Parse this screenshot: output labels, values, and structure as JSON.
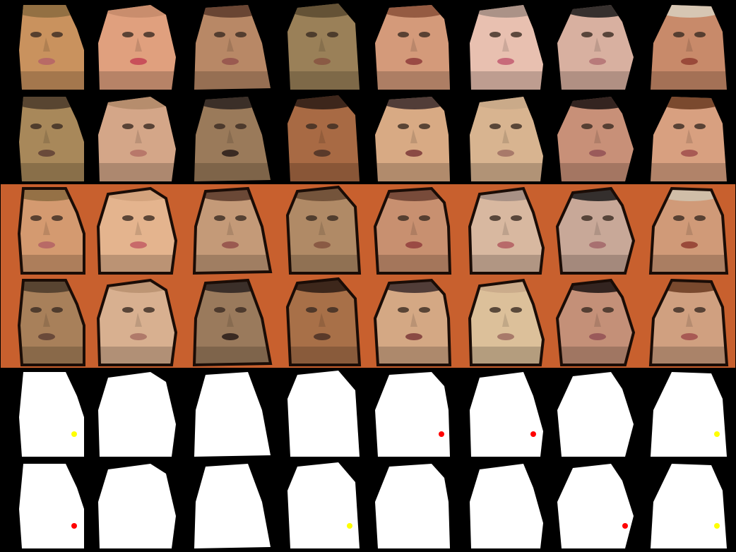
{
  "grid": {
    "rows": [
      {
        "kind": "warped-face",
        "background": "#000000",
        "tiles": [
          {
            "skin": "#c9925e",
            "hair": "#8a6a3e",
            "mouth": "#b86a66"
          },
          {
            "skin": "#e0a07e",
            "hair": "#c48a6a",
            "mouth": "#c8505a"
          },
          {
            "skin": "#b88866",
            "hair": "#5a3a2a",
            "mouth": "#9a5a50"
          },
          {
            "skin": "#9a8058",
            "hair": "#5a4a30",
            "mouth": "#8a5a44"
          },
          {
            "skin": "#d49a7a",
            "hair": "#8a5038",
            "mouth": "#9a4a44"
          },
          {
            "skin": "#e8c0b0",
            "hair": "#a08a80",
            "mouth": "#c86a7a"
          },
          {
            "skin": "#d8b0a0",
            "hair": "#1a1a1a",
            "mouth": "#b87a7a"
          },
          {
            "skin": "#c88a6a",
            "hair": "#d8d0c0",
            "mouth": "#9a4a3a"
          }
        ]
      },
      {
        "kind": "warped-face",
        "background": "#000000",
        "tiles": [
          {
            "skin": "#a8885a",
            "hair": "#4a3a2a",
            "mouth": "#6a4a3a"
          },
          {
            "skin": "#d4a688",
            "hair": "#b08868",
            "mouth": "#b8786a"
          },
          {
            "skin": "#9a7a5a",
            "hair": "#2a2220",
            "mouth": "#3a2a22"
          },
          {
            "skin": "#a86a44",
            "hair": "#2a1a14",
            "mouth": "#5a3a2a"
          },
          {
            "skin": "#d8aa84",
            "hair": "#3a2a2a",
            "mouth": "#8a4a44"
          },
          {
            "skin": "#d8b490",
            "hair": "#c8a888",
            "mouth": "#a87a6a"
          },
          {
            "skin": "#c89078",
            "hair": "#1a1210",
            "mouth": "#9a5a5a"
          },
          {
            "skin": "#d8a080",
            "hair": "#6a3a20",
            "mouth": "#a85a54"
          }
        ]
      },
      {
        "kind": "reconstructed-face",
        "background": "#c8602e",
        "tiles": [
          {
            "skin": "#d49a70",
            "hair": "#8a6a3e",
            "mouth": "#b86a66"
          },
          {
            "skin": "#e4b48e",
            "hair": "#d0a07a",
            "mouth": "#c86a6a"
          },
          {
            "skin": "#c49a78",
            "hair": "#5a3a2a",
            "mouth": "#9a5a50"
          },
          {
            "skin": "#b08a66",
            "hair": "#6a4a34",
            "mouth": "#8a5a44"
          },
          {
            "skin": "#c89070",
            "hair": "#6a4030",
            "mouth": "#9a4a44"
          },
          {
            "skin": "#d8b8a0",
            "hair": "#a08a80",
            "mouth": "#b86a6a"
          },
          {
            "skin": "#c8a898",
            "hair": "#1a1a1a",
            "mouth": "#a87070"
          },
          {
            "skin": "#d09a78",
            "hair": "#d0c4b0",
            "mouth": "#9a4a3a"
          }
        ]
      },
      {
        "kind": "reconstructed-face",
        "background": "#c8602e",
        "tiles": [
          {
            "skin": "#a8805a",
            "hair": "#4a3a2a",
            "mouth": "#6a4a3a"
          },
          {
            "skin": "#d8b090",
            "hair": "#b89070",
            "mouth": "#b07a6a"
          },
          {
            "skin": "#9a7a5c",
            "hair": "#2a2220",
            "mouth": "#3a2a22"
          },
          {
            "skin": "#a87048",
            "hair": "#2a1a14",
            "mouth": "#5a3a2a"
          },
          {
            "skin": "#d4a884",
            "hair": "#3a2a2a",
            "mouth": "#8a4a44"
          },
          {
            "skin": "#dcc09a",
            "hair": "#c8a888",
            "mouth": "#a87a6a"
          },
          {
            "skin": "#c49078",
            "hair": "#1a1210",
            "mouth": "#9a5a5a"
          },
          {
            "skin": "#d0a080",
            "hair": "#6a3a20",
            "mouth": "#a85a54"
          }
        ]
      },
      {
        "kind": "mask",
        "background": "#000000",
        "tiles": [
          {
            "mask": "#ffffff",
            "spot": "#ffff00"
          },
          {
            "mask": "#ffffff",
            "spot": ""
          },
          {
            "mask": "#ffffff",
            "spot": ""
          },
          {
            "mask": "#ffffff",
            "spot": ""
          },
          {
            "mask": "#ffffff",
            "spot": "#ff0000"
          },
          {
            "mask": "#ffffff",
            "spot": "#ff0000"
          },
          {
            "mask": "#ffffff",
            "spot": ""
          },
          {
            "mask": "#ffffff",
            "spot": "#ffff00"
          }
        ]
      },
      {
        "kind": "mask",
        "background": "#000000",
        "tiles": [
          {
            "mask": "#ffffff",
            "spot": "#ff0000"
          },
          {
            "mask": "#ffffff",
            "spot": ""
          },
          {
            "mask": "#ffffff",
            "spot": ""
          },
          {
            "mask": "#ffffff",
            "spot": "#ffff00"
          },
          {
            "mask": "#ffffff",
            "spot": ""
          },
          {
            "mask": "#ffffff",
            "spot": ""
          },
          {
            "mask": "#ffffff",
            "spot": "#ff0000"
          },
          {
            "mask": "#ffffff",
            "spot": "#ffff00"
          }
        ]
      }
    ]
  }
}
